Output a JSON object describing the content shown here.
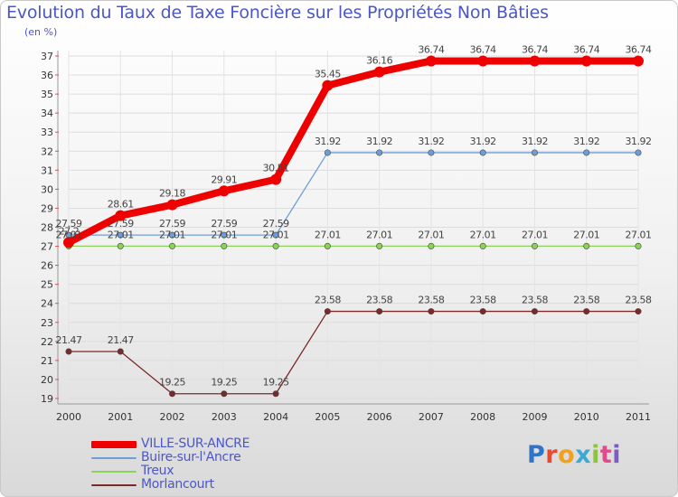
{
  "chart_data": {
    "type": "line",
    "title": "Evolution du Taux de Taxe Foncière sur les Propriétés Non Bâties",
    "subtitle": "(en %)",
    "x": [
      "2000",
      "2001",
      "2002",
      "2003",
      "2004",
      "2005",
      "2006",
      "2007",
      "2008",
      "2009",
      "2010",
      "2011"
    ],
    "ylim": [
      19,
      37
    ],
    "yticks": [
      19,
      20,
      21,
      22,
      23,
      24,
      25,
      26,
      27,
      28,
      29,
      30,
      31,
      32,
      33,
      34,
      35,
      36,
      37
    ],
    "grid": true,
    "series": [
      {
        "name": "VILLE-SUR-ANCRE",
        "color": "#ee0000",
        "values": [
          27.2,
          28.61,
          29.18,
          29.91,
          30.51,
          35.45,
          36.16,
          36.74,
          36.74,
          36.74,
          36.74,
          36.74
        ],
        "labels": [
          "27.2",
          "28.61",
          "29.18",
          "29.91",
          "30.51",
          "35.45",
          "36.16",
          "36.74",
          "36.74",
          "36.74",
          "36.74",
          "36.74"
        ]
      },
      {
        "name": "Buire-sur-l'Ancre",
        "color": "#6f9ed6",
        "values": [
          27.59,
          27.59,
          27.59,
          27.59,
          27.59,
          31.92,
          31.92,
          31.92,
          31.92,
          31.92,
          31.92,
          31.92
        ],
        "labels": [
          "27.59",
          "27.59",
          "27.59",
          "27.59",
          "27.59",
          "31.92",
          "31.92",
          "31.92",
          "31.92",
          "31.92",
          "31.92",
          "31.92"
        ]
      },
      {
        "name": "Treux",
        "color": "#8ad25a",
        "values": [
          27.01,
          27.01,
          27.01,
          27.01,
          27.01,
          27.01,
          27.01,
          27.01,
          27.01,
          27.01,
          27.01,
          27.01
        ],
        "labels": [
          "27.01",
          "27.01",
          "27.01",
          "27.01",
          "27.01",
          "27.01",
          "27.01",
          "27.01",
          "27.01",
          "27.01",
          "27.01",
          "27.01"
        ]
      },
      {
        "name": "Morlancourt",
        "color": "#7b2a2a",
        "values": [
          21.47,
          21.47,
          19.25,
          19.25,
          19.25,
          23.58,
          23.58,
          23.58,
          23.58,
          23.58,
          23.58,
          23.58
        ],
        "labels": [
          "21.47",
          "21.47",
          "19.25",
          "19.25",
          "19.25",
          "23.58",
          "23.58",
          "23.58",
          "23.58",
          "23.58",
          "23.58",
          "23.58"
        ]
      }
    ]
  },
  "brand": {
    "letters": [
      "P",
      "r",
      "o",
      "x",
      "i",
      "t",
      "i"
    ]
  }
}
